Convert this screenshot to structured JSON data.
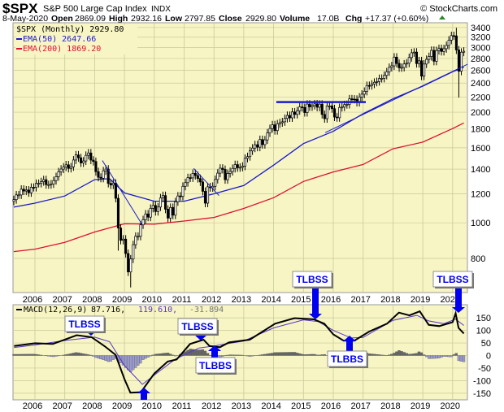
{
  "header": {
    "symbol": "$SPX",
    "name": "S&P 500 Large Cap Index",
    "exchange": "INDX",
    "copyright": "© StockCharts.com",
    "date": "8-May-2020",
    "open_label": "Open",
    "open": "2869.09",
    "high_label": "High",
    "high": "2932.16",
    "low_label": "Low",
    "low": "2797.85",
    "close_label": "Close",
    "close": "2929.80",
    "volume_label": "Volume",
    "volume": "17.0B",
    "chg_label": "Chg",
    "chg": "+17.37 (+0.60%)",
    "chg_icon": "triangle-up-icon"
  },
  "colors": {
    "background": "#f7f5c4",
    "grid": "#c9c99a",
    "price": "#000000",
    "ema50": "#1a1acc",
    "ema200": "#dd1133",
    "macd": "#000000",
    "signal": "#5533cc",
    "hist_pos": "#666666",
    "hist_neg": "#9999cc",
    "annotation": "#0000ee",
    "up": "#2a8a2a"
  },
  "chart_data": [
    {
      "type": "candlestick",
      "legend": {
        "price": "$SPX (Monthly) 2929.80",
        "ema50": "EMA(50) 2647.66",
        "ema200": "EMA(200) 1869.20"
      },
      "y_scale": "log",
      "ylim": [
        650,
        3500
      ],
      "y_ticks": [
        3400,
        3200,
        3000,
        2800,
        2600,
        2400,
        2200,
        2000,
        1800,
        1600,
        1400,
        1200,
        1000,
        800
      ],
      "x_ticks": [
        "2006",
        "2007",
        "2008",
        "2009",
        "2010",
        "2011",
        "2012",
        "2013",
        "2014",
        "2015",
        "2016",
        "2017",
        "2018",
        "2019",
        "2020"
      ],
      "start_month": "2005-04",
      "closes": [
        1156,
        1191,
        1191,
        1234,
        1220,
        1228,
        1207,
        1249,
        1248,
        1280,
        1280,
        1294,
        1310,
        1270,
        1270,
        1276,
        1303,
        1335,
        1377,
        1400,
        1418,
        1438,
        1406,
        1420,
        1482,
        1530,
        1503,
        1455,
        1473,
        1526,
        1549,
        1481,
        1468,
        1378,
        1330,
        1322,
        1385,
        1400,
        1280,
        1267,
        1282,
        1166,
        968,
        896,
        903,
        825,
        735,
        797,
        872,
        919,
        919,
        987,
        1020,
        1057,
        1036,
        1095,
        1115,
        1073,
        1104,
        1169,
        1186,
        1089,
        1030,
        1101,
        1049,
        1141,
        1183,
        1180,
        1257,
        1286,
        1327,
        1325,
        1363,
        1345,
        1320,
        1292,
        1218,
        1131,
        1253,
        1246,
        1257,
        1312,
        1365,
        1408,
        1397,
        1310,
        1362,
        1379,
        1406,
        1440,
        1412,
        1416,
        1426,
        1498,
        1514,
        1569,
        1597,
        1631,
        1606,
        1685,
        1632,
        1681,
        1756,
        1805,
        1848,
        1782,
        1859,
        1872,
        1883,
        1923,
        1960,
        1930,
        2003,
        1972,
        2018,
        2067,
        2059,
        1995,
        2104,
        2068,
        2085,
        2107,
        2063,
        2103,
        1972,
        1920,
        2079,
        2080,
        2044,
        1940,
        1932,
        2060,
        2065,
        2097,
        2099,
        2174,
        2171,
        2168,
        2126,
        2199,
        2239,
        2279,
        2364,
        2363,
        2384,
        2412,
        2423,
        2470,
        2472,
        2519,
        2575,
        2648,
        2674,
        2824,
        2714,
        2641,
        2648,
        2705,
        2718,
        2816,
        2902,
        2914,
        2712,
        2760,
        2507,
        2704,
        2784,
        2834,
        2946,
        2752,
        2942,
        2980,
        2926,
        2977,
        3038,
        3141,
        3231,
        3226,
        2954,
        2585,
        2912,
        2930
      ],
      "notable_lows": [
        {
          "month": "2009-03",
          "low": 667
        },
        {
          "month": "2020-03",
          "low": 2192
        },
        {
          "month": "2008-10",
          "low": 840
        }
      ],
      "notable_highs": [
        {
          "month": "2020-02",
          "high": 3394
        }
      ],
      "ema50": [
        [
          2005.29,
          1103
        ],
        [
          2006,
          1131
        ],
        [
          2007,
          1183
        ],
        [
          2008,
          1310
        ],
        [
          2008.5,
          1318
        ],
        [
          2009,
          1206
        ],
        [
          2010,
          1145
        ],
        [
          2011,
          1145
        ],
        [
          2012,
          1199
        ],
        [
          2013,
          1263
        ],
        [
          2014,
          1435
        ],
        [
          2015,
          1643
        ],
        [
          2016,
          1774
        ],
        [
          2017,
          1980
        ],
        [
          2018,
          2175
        ],
        [
          2019,
          2355
        ],
        [
          2020,
          2577
        ],
        [
          2020.375,
          2648
        ]
      ],
      "ema200": [
        [
          2005.29,
          835
        ],
        [
          2006,
          848
        ],
        [
          2007,
          885
        ],
        [
          2008,
          944
        ],
        [
          2009,
          994
        ],
        [
          2010,
          992
        ],
        [
          2011,
          1011
        ],
        [
          2012,
          1034
        ],
        [
          2013,
          1094
        ],
        [
          2014,
          1170
        ],
        [
          2015,
          1296
        ],
        [
          2016,
          1375
        ],
        [
          2017,
          1441
        ],
        [
          2018,
          1590
        ],
        [
          2019,
          1658
        ],
        [
          2020,
          1805
        ],
        [
          2020.375,
          1869
        ]
      ],
      "trendlines": [
        [
          [
            2008.26,
            1477
          ],
          [
            2009.6,
            987
          ]
        ],
        [
          [
            2011.32,
            1406
          ],
          [
            2012.17,
            1186
          ]
        ],
        [
          [
            2014.09,
            2131
          ],
          [
            2017.09,
            2131
          ]
        ],
        [
          [
            2015.73,
            1760
          ],
          [
            2020.5,
            2700
          ]
        ]
      ]
    },
    {
      "type": "line",
      "legend": {
        "macd": "MACD(12,26,9)",
        "macd_value": "87.716,",
        "signal_value": "119.610,",
        "hist_value": "-31.894"
      },
      "ylim": [
        -170,
        190
      ],
      "y_ticks": [
        150,
        100,
        50,
        0,
        -50,
        -100,
        -150
      ],
      "x_ticks": [
        "2006",
        "2007",
        "2008",
        "2009",
        "2010",
        "2011",
        "2012",
        "2013",
        "2014",
        "2015",
        "2016",
        "2017",
        "2018",
        "2019",
        "2020"
      ],
      "macd": [
        [
          2005.3,
          38
        ],
        [
          2006,
          49
        ],
        [
          2006.6,
          46
        ],
        [
          2007.4,
          81
        ],
        [
          2007.9,
          73
        ],
        [
          2008.35,
          36
        ],
        [
          2008.7,
          3
        ],
        [
          2009,
          -94
        ],
        [
          2009.2,
          -148
        ],
        [
          2009.55,
          -146
        ],
        [
          2010,
          -72
        ],
        [
          2010.45,
          -24
        ],
        [
          2010.75,
          -16
        ],
        [
          2011.2,
          46
        ],
        [
          2011.65,
          63
        ],
        [
          2011.85,
          38
        ],
        [
          2012.2,
          33
        ],
        [
          2012.5,
          52
        ],
        [
          2013.2,
          63
        ],
        [
          2014.05,
          127
        ],
        [
          2014.7,
          149
        ],
        [
          2015.35,
          144
        ],
        [
          2015.7,
          127
        ],
        [
          2016,
          84
        ],
        [
          2016.35,
          59
        ],
        [
          2016.7,
          59
        ],
        [
          2016.9,
          73
        ],
        [
          2017.2,
          95
        ],
        [
          2017.8,
          127
        ],
        [
          2018.2,
          171
        ],
        [
          2018.55,
          160
        ],
        [
          2018.9,
          176
        ],
        [
          2019.2,
          122
        ],
        [
          2019.55,
          117
        ],
        [
          2020,
          133
        ],
        [
          2020.1,
          168
        ],
        [
          2020.2,
          110
        ],
        [
          2020.375,
          87.716
        ]
      ],
      "signal": [
        [
          2005.3,
          32
        ],
        [
          2006,
          42
        ],
        [
          2007,
          60
        ],
        [
          2008,
          73
        ],
        [
          2008.5,
          55
        ],
        [
          2009,
          -40
        ],
        [
          2009.6,
          -115
        ],
        [
          2010.2,
          -60
        ],
        [
          2010.7,
          -15
        ],
        [
          2011.5,
          30
        ],
        [
          2012,
          38
        ],
        [
          2013,
          58
        ],
        [
          2014,
          110
        ],
        [
          2015,
          142
        ],
        [
          2015.5,
          135
        ],
        [
          2016,
          100
        ],
        [
          2016.6,
          70
        ],
        [
          2017,
          72
        ],
        [
          2018,
          140
        ],
        [
          2018.8,
          160
        ],
        [
          2019.2,
          138
        ],
        [
          2019.7,
          127
        ],
        [
          2020.1,
          145
        ],
        [
          2020.375,
          119.61
        ]
      ],
      "annotations": [
        {
          "label": "TLBSS",
          "arrow": "down"
        },
        {
          "label": "TLBSS",
          "arrow": "down"
        },
        {
          "label": "TLBBS",
          "arrow": "up"
        },
        {
          "label": "TLBSS",
          "arrow": "down"
        },
        {
          "label": "TLBBS",
          "arrow": "up"
        },
        {
          "label": "TLBSS",
          "arrow": "down"
        },
        {
          "label": "",
          "arrow": "up"
        }
      ]
    }
  ]
}
